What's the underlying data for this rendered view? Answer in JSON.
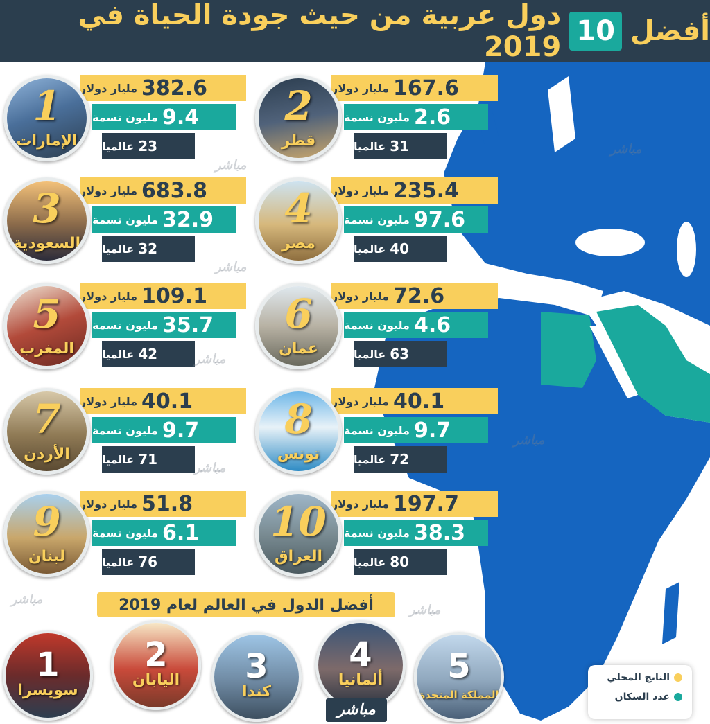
{
  "header": {
    "title_before": "أفضل",
    "title_num": "10",
    "title_after": "دول عربية من حيث جودة الحياة في 2019"
  },
  "units": {
    "gdp": "مليار دولار",
    "pop": "مليون نسمة",
    "rank": "عالميا"
  },
  "countries": [
    {
      "rank": "1",
      "name": "الإمارات",
      "gdp": "382.6",
      "pop": "9.4",
      "world": "23"
    },
    {
      "rank": "2",
      "name": "قطر",
      "gdp": "167.6",
      "pop": "2.6",
      "world": "31"
    },
    {
      "rank": "3",
      "name": "السعودية",
      "gdp": "683.8",
      "pop": "32.9",
      "world": "32"
    },
    {
      "rank": "4",
      "name": "مصر",
      "gdp": "235.4",
      "pop": "97.6",
      "world": "40"
    },
    {
      "rank": "5",
      "name": "المغرب",
      "gdp": "109.1",
      "pop": "35.7",
      "world": "42"
    },
    {
      "rank": "6",
      "name": "عمان",
      "gdp": "72.6",
      "pop": "4.6",
      "world": "63"
    },
    {
      "rank": "7",
      "name": "الأردن",
      "gdp": "40.1",
      "pop": "9.7",
      "world": "71"
    },
    {
      "rank": "8",
      "name": "تونس",
      "gdp": "40.1",
      "pop": "9.7",
      "world": "72"
    },
    {
      "rank": "9",
      "name": "لبنان",
      "gdp": "51.8",
      "pop": "6.1",
      "world": "76"
    },
    {
      "rank": "10",
      "name": "العراق",
      "gdp": "197.7",
      "pop": "38.3",
      "world": "80"
    }
  ],
  "world": {
    "title": "أفضل الدول في العالم لعام 2019",
    "items": [
      {
        "rank": "1",
        "name": "سويسرا"
      },
      {
        "rank": "2",
        "name": "اليابان"
      },
      {
        "rank": "3",
        "name": "كندا"
      },
      {
        "rank": "4",
        "name": "ألمانيا"
      },
      {
        "rank": "5",
        "name": "المملكة المتحدة"
      }
    ]
  },
  "legend": {
    "gdp_label": "الناتج المحلي",
    "pop_label": "عدد السكان"
  },
  "watermark": "مباشر",
  "colors": {
    "navy": "#2b3e4e",
    "yellow": "#f9cf5c",
    "teal": "#1aa99d",
    "map_blue": "#1565c0",
    "map_arab": "#1aa99d"
  }
}
